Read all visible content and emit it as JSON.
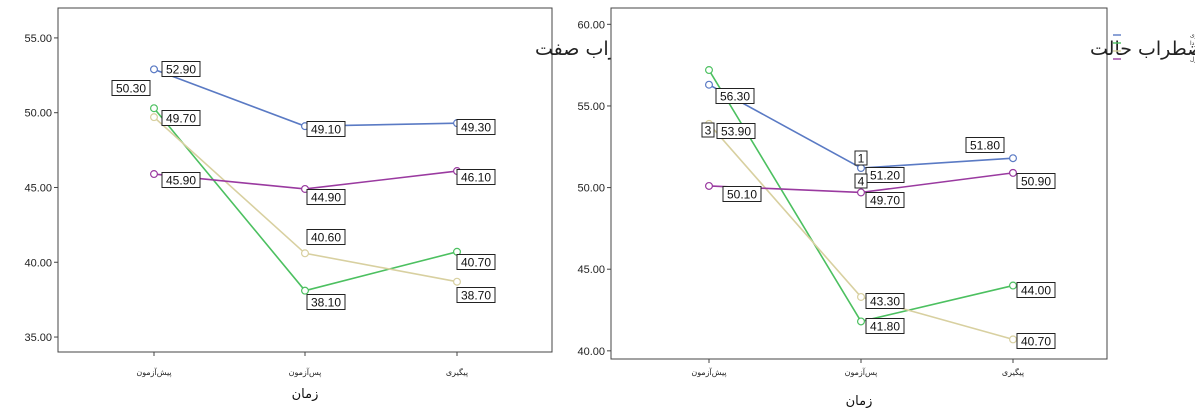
{
  "chart_data": [
    {
      "type": "line",
      "title": "اضطراب صفت",
      "xlabel": "زمان",
      "ylabel": "",
      "categories": [
        "پیش‌آزمون",
        "پس‌آزمون",
        "پیگیری"
      ],
      "ylim": [
        34,
        57
      ],
      "yticks": [
        "35.00",
        "40.00",
        "45.00",
        "50.00",
        "55.00"
      ],
      "grid": false,
      "series": [
        {
          "name": "شناختی-رفتاری",
          "color": "#5a7ac4",
          "values": [
            52.9,
            49.1,
            49.3
          ],
          "labels": [
            "52.90",
            "49.10",
            "49.30"
          ]
        },
        {
          "name": "ایروودا",
          "color": "#4cc060",
          "values": [
            50.3,
            38.1,
            40.7
          ],
          "labels": [
            "50.30",
            "38.10",
            "40.70"
          ]
        },
        {
          "name": "تلفیقی",
          "color": "#d8d0a0",
          "values": [
            49.7,
            40.6,
            38.7
          ],
          "labels": [
            "49.70",
            "40.60",
            "38.70"
          ]
        },
        {
          "name": "کنترل",
          "color": "#9a3aa0",
          "values": [
            45.9,
            44.9,
            46.1
          ],
          "labels": [
            "45.90",
            "44.90",
            "46.10"
          ]
        }
      ]
    },
    {
      "type": "line",
      "title": "اضطراب حالت",
      "xlabel": "زمان",
      "ylabel": "",
      "categories": [
        "پیش‌آزمون",
        "پس‌آزمون",
        "پیگیری"
      ],
      "ylim": [
        39.5,
        61
      ],
      "yticks": [
        "40.00",
        "45.00",
        "50.00",
        "55.00",
        "60.00"
      ],
      "grid": false,
      "legend": "top-right",
      "series": [
        {
          "name": "شناختی-رفتاری",
          "color": "#5a7ac4",
          "values": [
            56.3,
            51.2,
            51.8
          ],
          "labels": [
            "56.30",
            "51.20",
            "51.80"
          ]
        },
        {
          "name": "ایروودا",
          "color": "#4cc060",
          "values": [
            57.2,
            41.8,
            44.0
          ],
          "labels": [
            "",
            "41.80",
            "44.00"
          ]
        },
        {
          "name": "تلفیقی",
          "color": "#d8d0a0",
          "values": [
            53.9,
            43.3,
            40.7
          ],
          "labels": [
            "53.90",
            "43.30",
            "40.70"
          ]
        },
        {
          "name": "کنترل",
          "color": "#9a3aa0",
          "values": [
            50.1,
            49.7,
            50.9
          ],
          "labels": [
            "50.10",
            "49.70",
            "50.90"
          ]
        }
      ],
      "extra_labels": [
        "3",
        "1",
        "4"
      ]
    }
  ]
}
